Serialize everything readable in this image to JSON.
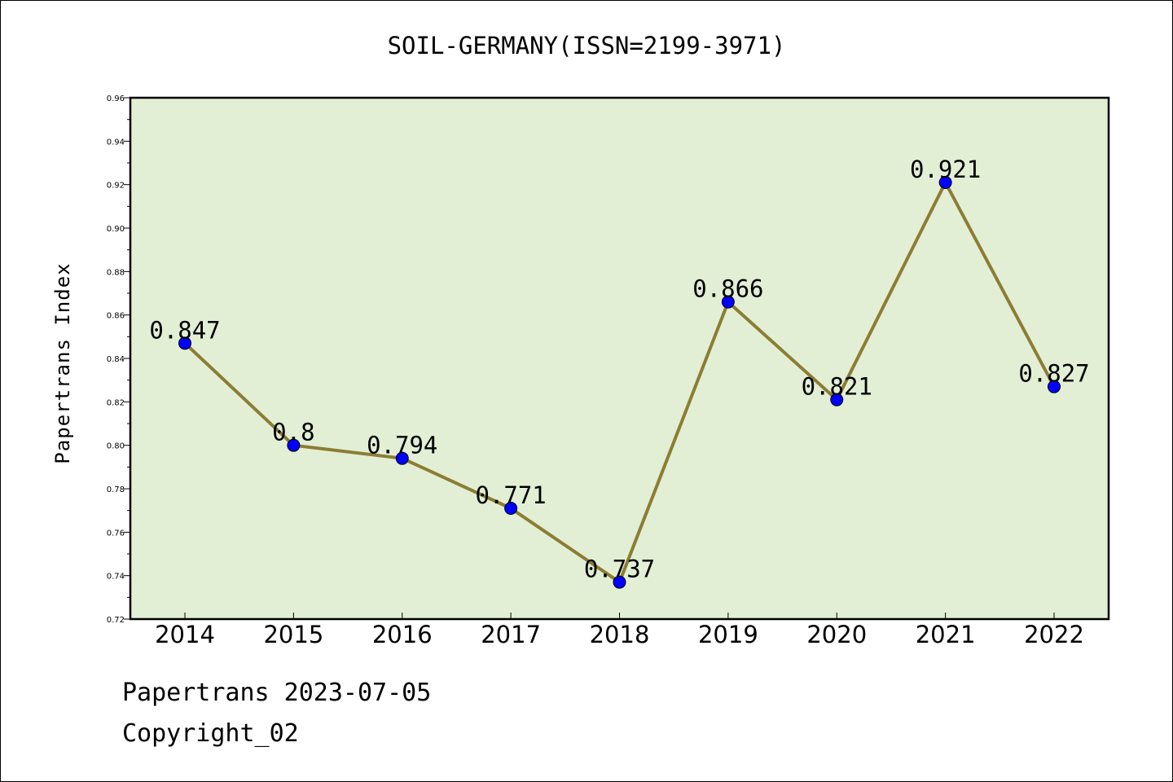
{
  "chart_data": {
    "type": "line",
    "title": "SOIL-GERMANY(ISSN=2199-3971)",
    "xlabel": "",
    "ylabel": "Papertrans Index",
    "categories": [
      "2014",
      "2015",
      "2016",
      "2017",
      "2018",
      "2019",
      "2020",
      "2021",
      "2022"
    ],
    "series": [
      {
        "values": [
          0.847,
          0.8,
          0.794,
          0.771,
          0.737,
          0.866,
          0.821,
          0.921,
          0.827
        ],
        "labels": [
          "0.847",
          "0.8",
          "0.794",
          "0.771",
          "0.737",
          "0.866",
          "0.821",
          "0.921",
          "0.827"
        ]
      }
    ],
    "ylim": [
      0.72,
      0.96
    ],
    "yticks": [
      "0.72",
      "0.74",
      "0.76",
      "0.78",
      "0.80",
      "0.82",
      "0.84",
      "0.86",
      "0.88",
      "0.90",
      "0.92",
      "0.94",
      "0.96"
    ],
    "grid": false,
    "legend": "none",
    "colors": {
      "plot_background": "#e2efd5",
      "line": "#8b7d33",
      "marker": "#0000ff"
    }
  },
  "footer": {
    "line1": "Papertrans 2023-07-05",
    "line2": "Copyright_02"
  }
}
